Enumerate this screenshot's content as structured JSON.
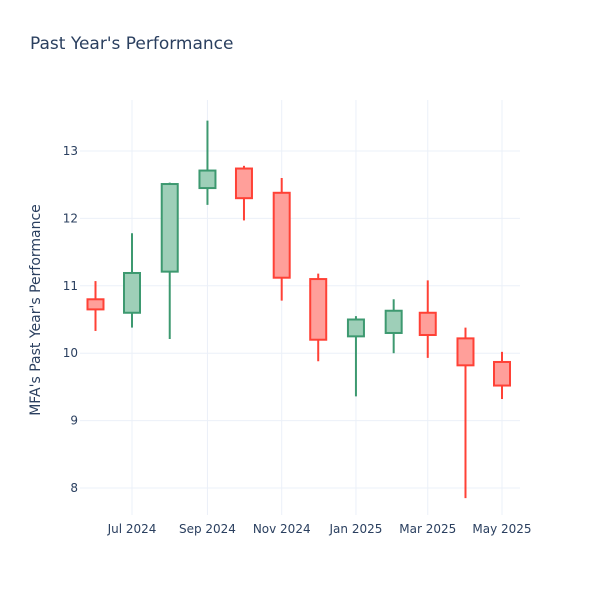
{
  "chart_data": {
    "type": "candlestick",
    "title": "Past Year's Performance",
    "xlabel": "",
    "ylabel": "MFA's Past Year's Performance",
    "ylim": [
      7.6,
      13.75
    ],
    "yticks": [
      8,
      9,
      10,
      11,
      12,
      13
    ],
    "xticks": [
      {
        "label": "Jul 2024",
        "date": "2024-07-01"
      },
      {
        "label": "Sep 2024",
        "date": "2024-09-01"
      },
      {
        "label": "Nov 2024",
        "date": "2024-11-01"
      },
      {
        "label": "Jan 2025",
        "date": "2025-01-01"
      },
      {
        "label": "Mar 2025",
        "date": "2025-03-01"
      },
      {
        "label": "May 2025",
        "date": "2025-05-01"
      }
    ],
    "grid": true,
    "colors": {
      "increasing": "#3d9970",
      "decreasing": "#ff4136",
      "increasing_fill": "#9ecfb8",
      "decreasing_fill": "#ff9f9a",
      "grid": "#ebf0f8",
      "text": "#2a3f5f"
    },
    "candles": [
      {
        "date": "2024-06-01",
        "open": 10.8,
        "high": 11.07,
        "low": 10.33,
        "close": 10.65
      },
      {
        "date": "2024-07-01",
        "open": 10.6,
        "high": 11.78,
        "low": 10.38,
        "close": 11.19
      },
      {
        "date": "2024-08-01",
        "open": 11.21,
        "high": 12.53,
        "low": 10.21,
        "close": 12.51
      },
      {
        "date": "2024-09-01",
        "open": 12.45,
        "high": 13.45,
        "low": 12.2,
        "close": 12.71
      },
      {
        "date": "2024-10-01",
        "open": 12.74,
        "high": 12.78,
        "low": 11.97,
        "close": 12.3
      },
      {
        "date": "2024-11-01",
        "open": 12.38,
        "high": 12.6,
        "low": 10.78,
        "close": 11.12
      },
      {
        "date": "2024-12-01",
        "open": 11.1,
        "high": 11.18,
        "low": 9.88,
        "close": 10.2
      },
      {
        "date": "2025-01-01",
        "open": 10.25,
        "high": 10.55,
        "low": 9.36,
        "close": 10.5
      },
      {
        "date": "2025-02-01",
        "open": 10.3,
        "high": 10.8,
        "low": 10.0,
        "close": 10.63
      },
      {
        "date": "2025-03-01",
        "open": 10.6,
        "high": 11.08,
        "low": 9.93,
        "close": 10.27
      },
      {
        "date": "2025-04-01",
        "open": 10.22,
        "high": 10.38,
        "low": 7.85,
        "close": 9.82
      },
      {
        "date": "2025-05-01",
        "open": 9.87,
        "high": 10.02,
        "low": 9.32,
        "close": 9.52
      }
    ]
  }
}
